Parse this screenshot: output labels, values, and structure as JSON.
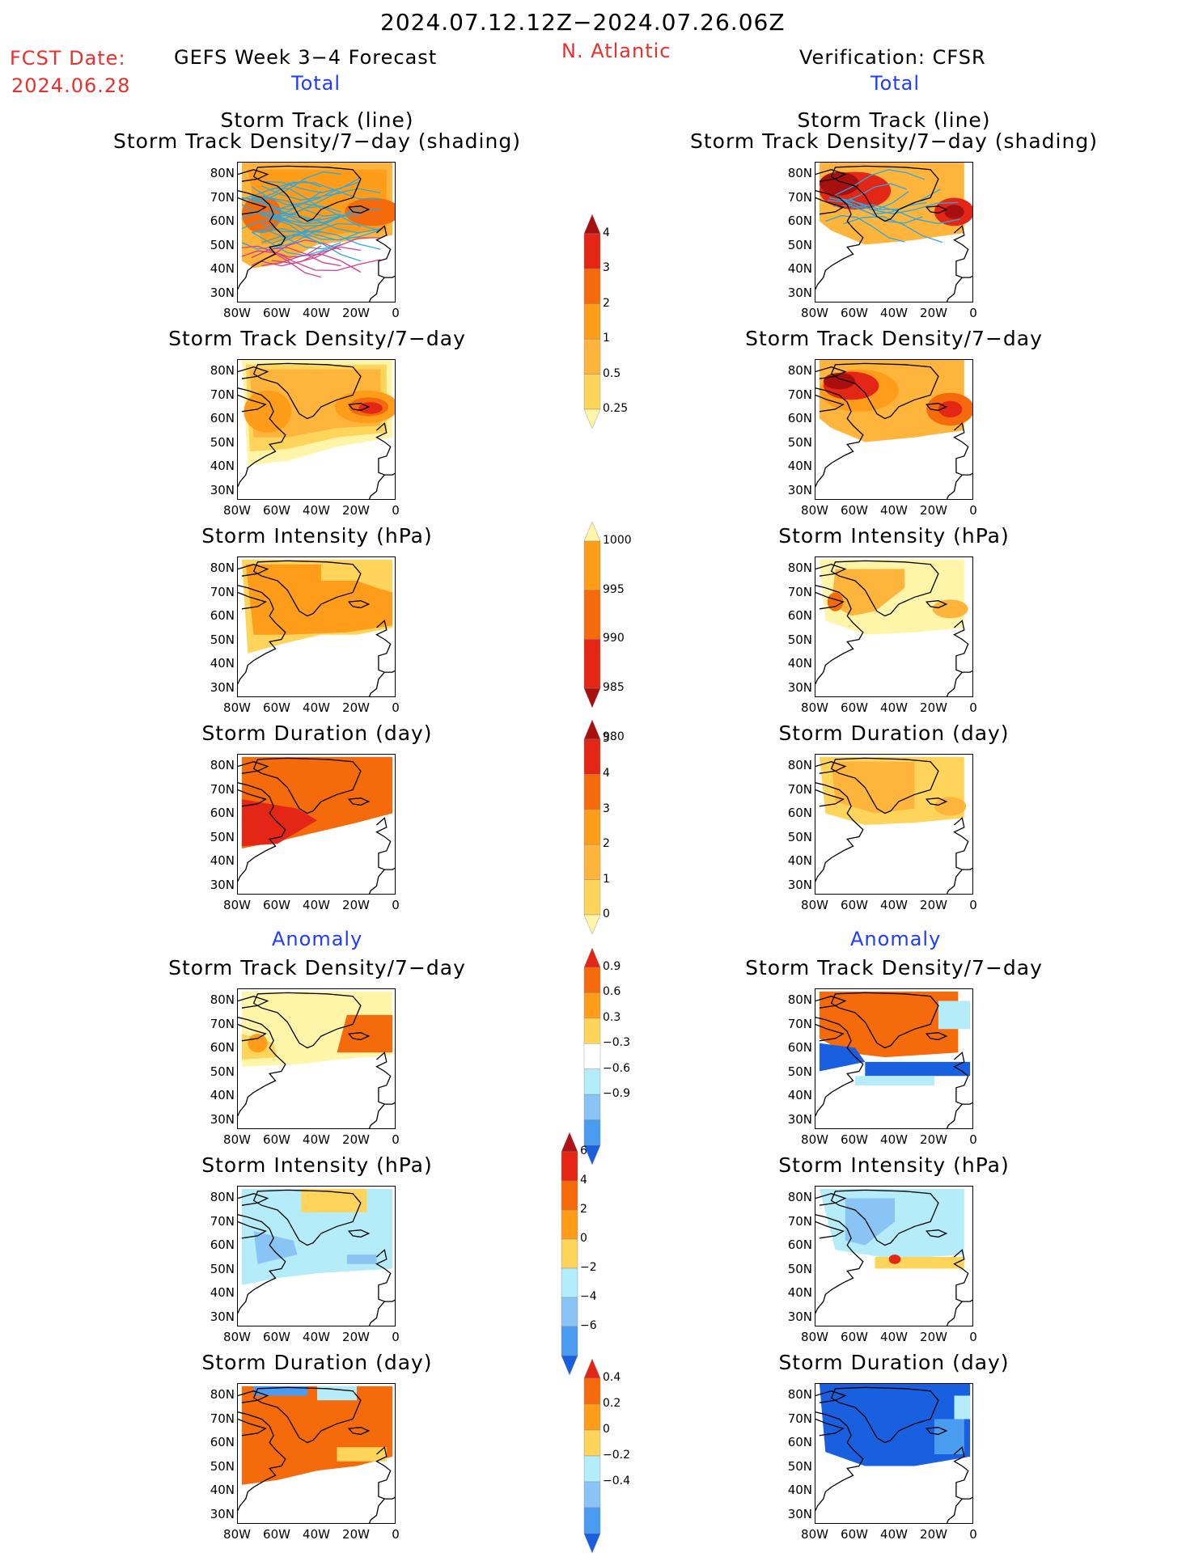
{
  "header": {
    "date_range": "2024.07.12.12Z−2024.07.26.06Z",
    "fcst_label": "FCST Date:",
    "fcst_date": "2024.06.28",
    "left_title": "GEFS Week 3−4 Forecast",
    "region": "N. Atlantic",
    "right_title": "Verification: CFSR"
  },
  "sections": {
    "total": "Total",
    "anomaly": "Anomaly"
  },
  "panel_titles": {
    "track_line": "Storm Track (line)",
    "track_shading": "Storm Track Density/7−day (shading)",
    "density": "Storm Track Density/7−day",
    "intensity": "Storm Intensity (hPa)",
    "duration": "Storm Duration (day)"
  },
  "axes": {
    "lat_ticks": [
      "80N",
      "70N",
      "60N",
      "50N",
      "40N",
      "30N"
    ],
    "lon_ticks": [
      "80W",
      "60W",
      "40W",
      "20W",
      "0"
    ]
  },
  "colorbars": {
    "density_total": [
      "4",
      "3",
      "2",
      "1",
      "0.5",
      "0.25"
    ],
    "intensity_total": [
      "1000",
      "995",
      "990",
      "985",
      "980"
    ],
    "duration_total": [
      "5",
      "4",
      "3",
      "2",
      "1",
      "0"
    ],
    "density_anom": [
      "0.9",
      "0.6",
      "0.3",
      "−0.3",
      "−0.6",
      "−0.9"
    ],
    "intensity_anom": [
      "6",
      "4",
      "2",
      "0",
      "−2",
      "−4",
      "−6"
    ],
    "duration_anom": [
      "0.4",
      "0.2",
      "0",
      "−0.2",
      "−0.4"
    ]
  },
  "colors": {
    "light_yellow": "#fff5a8",
    "yellow": "#ffd45a",
    "light_orange": "#ffb43c",
    "orange": "#ff9c1a",
    "dark_orange": "#f56a0a",
    "red": "#e32616",
    "dark_red": "#a80f0f",
    "light_blue": "#b4ecfa",
    "mid_blue": "#8ac4f5",
    "blue": "#4a9cf0",
    "dark_blue": "#1860e0",
    "track_line": "#2fa8e0"
  }
}
